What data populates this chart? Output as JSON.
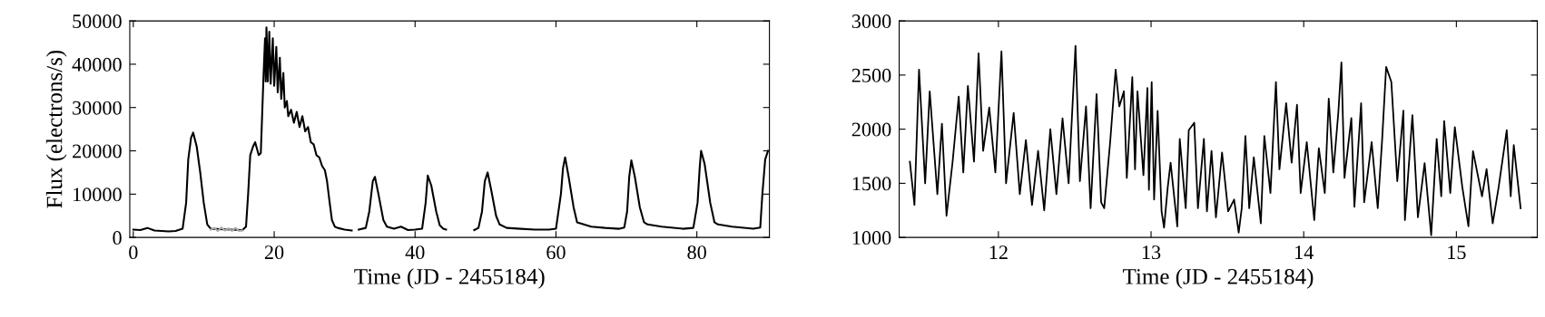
{
  "chart_data": [
    {
      "type": "line",
      "xlabel": "Time (JD - 2455184)",
      "ylabel": "Flux (electrons/s)",
      "xlim": [
        -0.5,
        90.3
      ],
      "ylim": [
        0,
        50000
      ],
      "xticks": [
        0,
        20,
        40,
        60,
        80
      ],
      "yticks": [
        0,
        10000,
        20000,
        30000,
        40000,
        50000
      ],
      "series": [
        {
          "color": "#000000",
          "x": [
            0,
            1,
            2,
            3,
            4,
            5,
            6,
            7,
            7.5,
            7.8,
            8.2,
            8.5,
            9,
            9.5,
            10,
            10.5,
            11,
            15.5,
            16,
            16.3,
            16.6,
            17,
            17.3,
            17.8,
            18.1,
            18.5,
            18.7,
            18.8,
            18.9,
            19.1,
            19.3,
            19.5,
            19.8,
            20.0,
            20.3,
            20.5,
            20.8,
            21.0,
            21.3,
            21.5,
            21.8,
            22.0,
            22.4,
            22.8,
            23.2,
            23.6,
            24.0,
            24.4,
            24.8,
            25.2,
            25.6,
            26.0,
            26.4,
            26.8,
            27.2,
            27.5,
            27.8,
            28.2,
            28.6,
            29,
            30,
            31,
            31.5,
            32,
            33,
            33.5,
            34,
            34.3,
            34.8,
            35.5,
            36,
            37,
            38,
            39,
            40,
            41,
            41.5,
            41.8,
            42.3,
            43,
            43.5,
            44,
            44.4,
            46,
            48.4,
            49,
            49.5,
            49.9,
            50.3,
            50.8,
            51.5,
            52,
            53,
            55,
            57,
            59,
            60,
            60.7,
            61.0,
            61.3,
            61.8,
            62.5,
            63,
            65,
            67,
            69,
            69.7,
            70.1,
            70.4,
            70.7,
            71.2,
            71.9,
            72.5,
            73,
            75,
            78,
            79.5,
            80.1,
            80.4,
            80.6,
            81.1,
            81.9,
            82.5,
            83,
            85,
            88,
            89,
            89.3,
            89.7,
            90.1
          ],
          "values": [
            1800,
            1700,
            2200,
            1600,
            1500,
            1400,
            1500,
            2000,
            8000,
            18000,
            23000,
            24200,
            21000,
            15000,
            8000,
            3000,
            2000,
            1700,
            2500,
            10000,
            19000,
            21000,
            22000,
            19000,
            19500,
            38000,
            46000,
            36000,
            48500,
            36000,
            47500,
            35500,
            46000,
            35000,
            44000,
            33500,
            41500,
            32000,
            38000,
            30000,
            31500,
            28000,
            29500,
            26500,
            29000,
            25500,
            28000,
            24500,
            25500,
            22000,
            21500,
            19000,
            18500,
            16500,
            15500,
            13000,
            9000,
            4000,
            2500,
            2200,
            1800,
            1600,
            null,
            1800,
            2200,
            6000,
            13000,
            14000,
            10000,
            4000,
            2500,
            2000,
            2500,
            1700,
            1800,
            2000,
            8000,
            14300,
            12000,
            6000,
            2800,
            2000,
            1800,
            null,
            1700,
            2200,
            6000,
            13000,
            15000,
            11000,
            5000,
            3000,
            2200,
            2000,
            1800,
            1800,
            2000,
            10000,
            16000,
            18500,
            14000,
            7000,
            3500,
            2500,
            2200,
            2000,
            2300,
            6000,
            14000,
            17800,
            14000,
            7000,
            3500,
            3000,
            2500,
            2000,
            2200,
            8000,
            16000,
            20000,
            17000,
            8000,
            3500,
            3000,
            2500,
            2000,
            2300,
            10000,
            18000,
            20000
          ]
        },
        {
          "color": "#aaaaaa",
          "x": [
            11,
            11.5,
            12,
            12.5,
            13,
            13.5,
            14,
            14.5,
            15,
            15.5
          ],
          "values": [
            1800,
            2200,
            1500,
            2300,
            1600,
            2100,
            1500,
            2200,
            1500,
            1600
          ]
        }
      ]
    },
    {
      "type": "line",
      "xlabel": "Time (JD - 2455184)",
      "xlim": [
        11.35,
        15.53
      ],
      "ylim": [
        1000,
        3000
      ],
      "xticks": [
        12,
        13,
        14,
        15
      ],
      "yticks": [
        1000,
        1500,
        2000,
        2500,
        3000
      ],
      "series": [
        {
          "color": "#000000",
          "x": [
            11.42,
            11.45,
            11.48,
            11.52,
            11.55,
            11.6,
            11.63,
            11.66,
            11.7,
            11.74,
            11.77,
            11.8,
            11.84,
            11.87,
            11.9,
            11.94,
            11.98,
            12.02,
            12.05,
            12.1,
            12.14,
            12.18,
            12.22,
            12.26,
            12.3,
            12.34,
            12.38,
            12.42,
            12.46,
            12.505,
            12.534,
            12.574,
            12.604,
            12.643,
            12.673,
            12.693,
            12.732,
            12.768,
            12.792,
            12.822,
            12.841,
            12.877,
            12.895,
            12.911,
            12.95,
            12.976,
            12.986,
            13.004,
            13.02,
            13.043,
            13.069,
            13.085,
            13.109,
            13.128,
            13.172,
            13.188,
            13.227,
            13.247,
            13.283,
            13.307,
            13.346,
            13.366,
            13.396,
            13.425,
            13.465,
            13.505,
            13.544,
            13.574,
            13.594,
            13.618,
            13.643,
            13.673,
            13.719,
            13.742,
            13.782,
            13.818,
            13.841,
            13.885,
            13.921,
            13.956,
            13.98,
            14.02,
            14.069,
            14.099,
            14.138,
            14.164,
            14.194,
            14.227,
            14.247,
            14.267,
            14.312,
            14.332,
            14.376,
            14.396,
            14.445,
            14.485,
            14.514,
            14.54,
            14.574,
            14.613,
            14.653,
            14.663,
            14.712,
            14.748,
            14.792,
            14.835,
            14.871,
            14.901,
            14.92,
            14.96,
            14.99,
            15.039,
            15.079,
            15.109,
            15.168,
            15.198,
            15.238,
            15.277,
            15.33,
            15.356,
            15.376,
            15.421
          ],
          "values": [
            1700,
            1300,
            2550,
            1500,
            2350,
            1400,
            2050,
            1200,
            1700,
            2300,
            1600,
            2400,
            1700,
            2700,
            1800,
            2200,
            1600,
            2720,
            1500,
            2150,
            1400,
            1900,
            1300,
            1800,
            1250,
            2000,
            1400,
            2100,
            1500,
            2770,
            1520,
            2210,
            1270,
            2325,
            1325,
            1270,
            1880,
            2550,
            2210,
            2350,
            1550,
            2480,
            1630,
            2350,
            1575,
            2380,
            1440,
            2435,
            1350,
            2170,
            1240,
            1090,
            1460,
            1690,
            1100,
            1910,
            1270,
            1990,
            2060,
            1270,
            1910,
            1240,
            1800,
            1185,
            1785,
            1240,
            1350,
            1045,
            1270,
            1936,
            1270,
            1740,
            1130,
            1936,
            1410,
            2435,
            1630,
            2240,
            1690,
            2225,
            1410,
            1880,
            1160,
            1825,
            1410,
            2283,
            1600,
            2158,
            2617,
            1550,
            2103,
            1283,
            2240,
            1325,
            1880,
            1270,
            1910,
            2575,
            2436,
            1520,
            2172,
            1160,
            2130,
            1186,
            1686,
            1020,
            1910,
            1380,
            2075,
            1410,
            2019,
            1464,
            1103,
            1797,
            1380,
            1631,
            1130,
            1464,
            1991,
            1380,
            1853,
            1269
          ]
        }
      ]
    }
  ]
}
